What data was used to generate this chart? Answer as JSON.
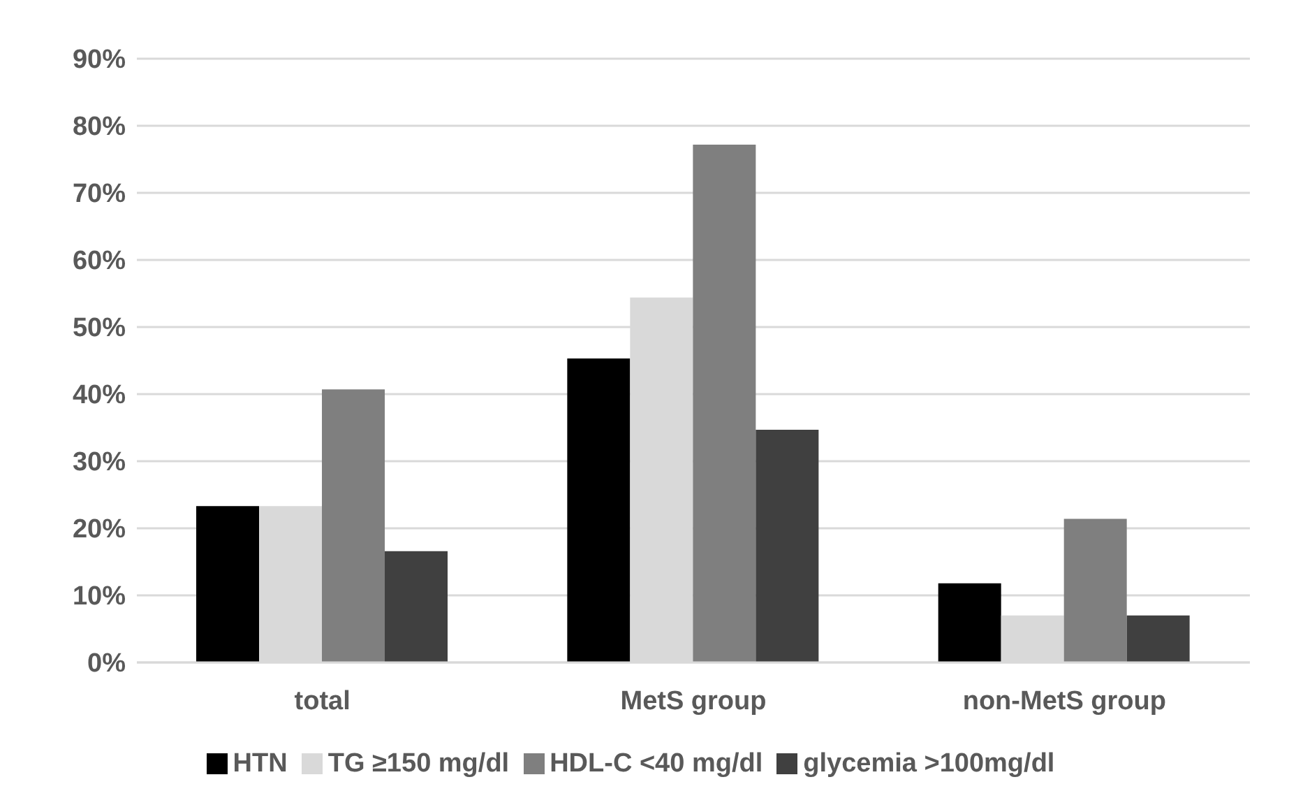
{
  "chart_data": {
    "type": "bar",
    "categories": [
      "total",
      "MetS group",
      "non-MetS group"
    ],
    "series": [
      {
        "name": "HTN",
        "color": "#000000",
        "values": [
          23.3,
          45.3,
          11.8
        ]
      },
      {
        "name": "TG ≥150 mg/dl",
        "color": "#d9d9d9",
        "values": [
          23.3,
          54.4,
          7.0
        ]
      },
      {
        "name": "HDL-C <40 mg/dl",
        "color": "#7f7f7f",
        "values": [
          40.7,
          77.2,
          21.4
        ]
      },
      {
        "name": "glycemia >100mg/dl",
        "color": "#404040",
        "values": [
          16.6,
          34.7,
          7.0
        ]
      }
    ],
    "ylim": [
      0,
      90
    ],
    "yticks": [
      {
        "value": 0,
        "label": "0%"
      },
      {
        "value": 10,
        "label": "10%"
      },
      {
        "value": 20,
        "label": "20%"
      },
      {
        "value": 30,
        "label": "30%"
      },
      {
        "value": 40,
        "label": "40%"
      },
      {
        "value": 50,
        "label": "50%"
      },
      {
        "value": 60,
        "label": "60%"
      },
      {
        "value": 70,
        "label": "70%"
      },
      {
        "value": 80,
        "label": "80%"
      },
      {
        "value": 90,
        "label": "90%"
      }
    ],
    "grid": "y",
    "legend": "bottom"
  }
}
